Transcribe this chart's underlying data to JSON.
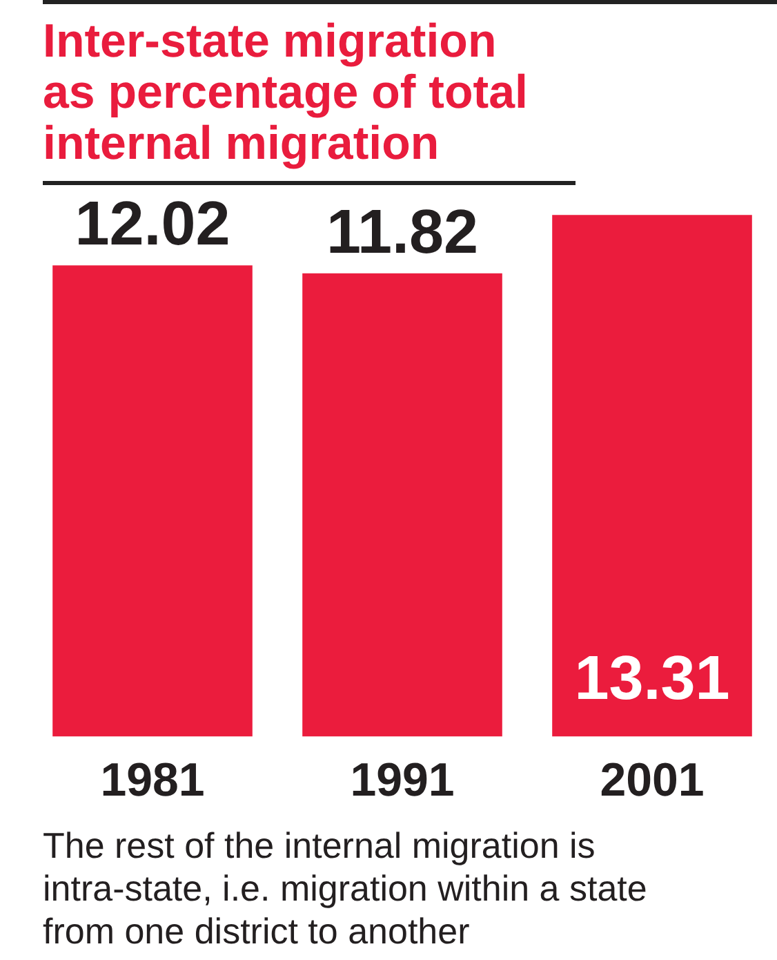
{
  "chart_data": {
    "type": "bar",
    "title": "Inter-state migration as percentage of total internal migration",
    "categories": [
      "1981",
      "1991",
      "2001"
    ],
    "values": [
      12.02,
      11.82,
      13.31
    ],
    "color": "#eb1c3d",
    "tick_labels": "x",
    "data_labels": true,
    "annotations": [
      "The rest of the internal migration is intra-state, i.e. migration within a state from one district to another"
    ]
  }
}
